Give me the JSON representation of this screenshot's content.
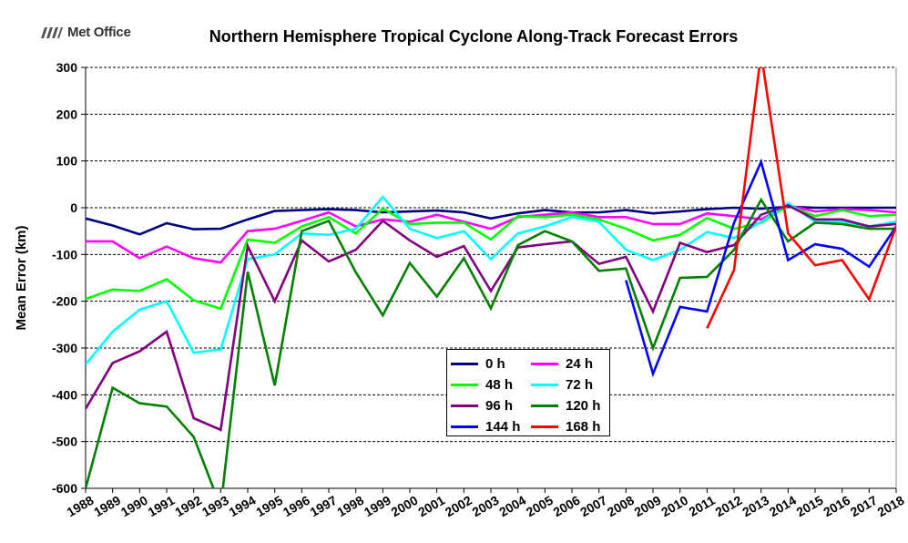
{
  "logo": {
    "text": "Met Office",
    "icon": "met-office-logo-icon"
  },
  "chart_data": {
    "type": "line",
    "title": "Northern Hemisphere Tropical Cyclone Along-Track Forecast Errors",
    "xlabel": "",
    "ylabel": "Mean Error (km)",
    "ylim": [
      -600,
      300
    ],
    "yticks": [
      -600,
      -500,
      -400,
      -300,
      -200,
      -100,
      0,
      100,
      200,
      300
    ],
    "x": [
      1988,
      1989,
      1990,
      1991,
      1992,
      1993,
      1994,
      1995,
      1996,
      1997,
      1998,
      1999,
      2000,
      2001,
      2002,
      2003,
      2004,
      2005,
      2006,
      2007,
      2008,
      2009,
      2010,
      2011,
      2012,
      2013,
      2014,
      2015,
      2016,
      2017,
      2018
    ],
    "grid": "horizontal-dashed",
    "legend_position": "bottom-center",
    "series": [
      {
        "name": "0 h",
        "color": "#000080",
        "values": [
          -23,
          -38,
          -57,
          -33,
          -46,
          -45,
          -25,
          -7,
          -5,
          -3,
          -5,
          -10,
          -8,
          -6,
          -10,
          -23,
          -12,
          -5,
          -10,
          -10,
          -5,
          -12,
          -8,
          -3,
          0,
          -2,
          2,
          0,
          0,
          0,
          0
        ]
      },
      {
        "name": "24 h",
        "color": "#FF00FF",
        "values": [
          -72,
          -72,
          -108,
          -83,
          -108,
          -117,
          -50,
          -45,
          -28,
          -10,
          -40,
          -25,
          -30,
          -15,
          -30,
          -45,
          -20,
          -15,
          -10,
          -20,
          -20,
          -35,
          -35,
          -12,
          -18,
          -25,
          5,
          -8,
          -3,
          -5,
          -10
        ]
      },
      {
        "name": "48 h",
        "color": "#00FF00",
        "values": [
          -195,
          -175,
          -178,
          -153,
          -198,
          -216,
          -68,
          -75,
          -40,
          -20,
          -55,
          -2,
          -35,
          -32,
          -32,
          -68,
          -18,
          -20,
          -15,
          -25,
          -45,
          -70,
          -58,
          -22,
          -45,
          -32,
          5,
          -18,
          -5,
          -18,
          -15
        ]
      },
      {
        "name": "72 h",
        "color": "#00FFFF",
        "values": [
          -335,
          -265,
          -218,
          -200,
          -310,
          -303,
          -110,
          -100,
          -55,
          -58,
          -45,
          23,
          -45,
          -65,
          -50,
          -110,
          -55,
          -40,
          -20,
          -30,
          -90,
          -112,
          -90,
          -52,
          -65,
          -30,
          10,
          -30,
          -30,
          -40,
          -30
        ]
      },
      {
        "name": "96 h",
        "color": "#800080",
        "values": [
          -430,
          -332,
          -307,
          -265,
          -450,
          -475,
          -82,
          -200,
          -70,
          -115,
          -90,
          -28,
          -70,
          -105,
          -82,
          -178,
          -85,
          -78,
          -72,
          -120,
          -105,
          -222,
          -75,
          -95,
          -80,
          -15,
          5,
          -25,
          -25,
          -40,
          -35
        ]
      },
      {
        "name": "120 h",
        "color": "#008000",
        "values": [
          -600,
          -385,
          -418,
          -425,
          -490,
          -640,
          -137,
          -380,
          -50,
          -28,
          -138,
          -230,
          -118,
          -190,
          -108,
          -215,
          -80,
          -50,
          -72,
          -135,
          -130,
          -300,
          -150,
          -148,
          -90,
          17,
          -72,
          -32,
          -35,
          -45,
          -45
        ]
      },
      {
        "name": "144 h",
        "color": "#0000FF",
        "values": [
          null,
          null,
          null,
          null,
          null,
          null,
          null,
          null,
          null,
          null,
          null,
          null,
          null,
          null,
          null,
          null,
          null,
          null,
          null,
          null,
          -155,
          -355,
          -212,
          -222,
          -32,
          98,
          -112,
          -78,
          -88,
          -126,
          -40
        ]
      },
      {
        "name": "168 h",
        "color": "#FF0000",
        "values": [
          null,
          null,
          null,
          null,
          null,
          null,
          null,
          null,
          null,
          null,
          null,
          null,
          null,
          null,
          null,
          null,
          null,
          null,
          null,
          null,
          null,
          null,
          null,
          -258,
          -133,
          330,
          -55,
          -123,
          -112,
          -196,
          -40
        ]
      }
    ]
  }
}
